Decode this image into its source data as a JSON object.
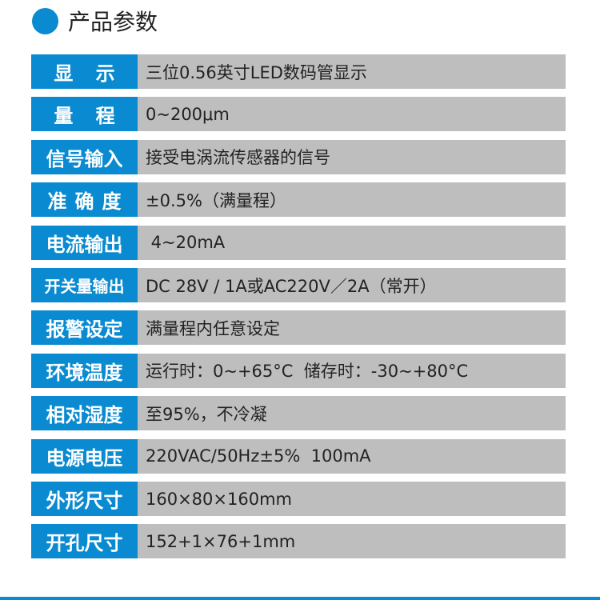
{
  "header": {
    "title": "产品参数",
    "accent_color": "#0a8ad0"
  },
  "rows": [
    {
      "label": "显 示",
      "value": "三位0.56英寸LED数码管显示"
    },
    {
      "label": "量 程",
      "value": "0~200μm"
    },
    {
      "label": "信号输入",
      "value": "接受电涡流传感器的信号"
    },
    {
      "label": "准确度",
      "value": "±0.5%（满量程）"
    },
    {
      "label": "电流输出",
      "value": " 4~20mA"
    },
    {
      "label": "开关量输出",
      "value": "DC 28V / 1A或AC220V／2A（常开）"
    },
    {
      "label": "报警设定",
      "value": "满量程内任意设定"
    },
    {
      "label": "环境温度",
      "value": "运行时：0~+65°C  储存时：-30~+80°C"
    },
    {
      "label": "相对湿度",
      "value": "至95%，不冷凝"
    },
    {
      "label": "电源电压",
      "value": "220VAC/50Hz±5%  100mA"
    },
    {
      "label": "外形尺寸",
      "value": "160×80×160mm"
    },
    {
      "label": "开孔尺寸",
      "value": "152+1×76+1mm"
    }
  ]
}
